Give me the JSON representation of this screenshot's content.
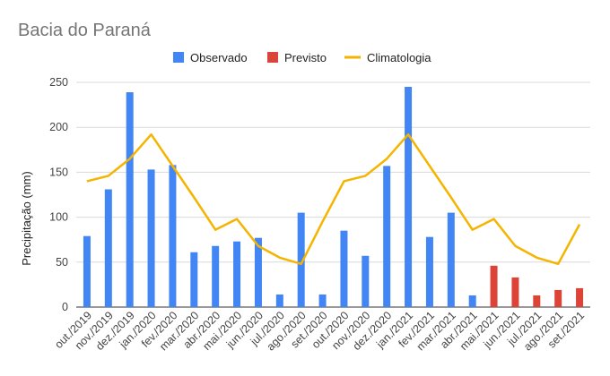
{
  "chart_data": {
    "type": "bar",
    "title": "Bacia do Paraná",
    "ylabel": "Precipitação (mm)",
    "xlabel": "",
    "ylim": [
      0,
      250
    ],
    "yticks": [
      0,
      50,
      100,
      150,
      200,
      250
    ],
    "grid": true,
    "legend_position": "top",
    "categories": [
      "out./2019",
      "nov./2019",
      "dez./2019",
      "jan./2020",
      "fev./2020",
      "mar./2020",
      "abr./2020",
      "mai./2020",
      "jun./2020",
      "jul./2020",
      "ago./2020",
      "set./2020",
      "out./2020",
      "nov./2020",
      "dez./2020",
      "jan./2021",
      "fev./2021",
      "mar./2021",
      "abr./2021",
      "mai./2021",
      "jun./2021",
      "jul./2021",
      "ago./2021",
      "set./2021"
    ],
    "series": [
      {
        "name": "Observado",
        "kind": "bar",
        "color": "#4285f4",
        "values": [
          79,
          131,
          239,
          153,
          158,
          61,
          68,
          73,
          77,
          14,
          105,
          14,
          85,
          57,
          157,
          245,
          78,
          105,
          13,
          null,
          null,
          null,
          null,
          null
        ]
      },
      {
        "name": "Previsto",
        "kind": "bar",
        "color": "#db4437",
        "values": [
          null,
          null,
          null,
          null,
          null,
          null,
          null,
          null,
          null,
          null,
          null,
          null,
          null,
          null,
          null,
          null,
          null,
          null,
          null,
          46,
          33,
          13,
          19,
          21
        ]
      },
      {
        "name": "Climatologia",
        "kind": "line",
        "color": "#f4b400",
        "values": [
          140,
          146,
          165,
          192,
          157,
          122,
          86,
          98,
          68,
          55,
          48,
          95,
          140,
          146,
          165,
          192,
          157,
          122,
          86,
          98,
          68,
          55,
          48,
          92
        ]
      }
    ]
  }
}
